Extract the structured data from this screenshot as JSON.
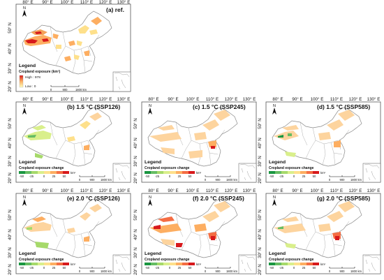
{
  "top": {
    "title": "(a) ref.",
    "lon_ticks": [
      "80° E",
      "90° E",
      "100° E",
      "110° E",
      "120° E",
      "130° E"
    ],
    "lat_ticks": [
      "50° N",
      "40° N",
      "30° N",
      "20° N"
    ],
    "legend_title": "Legend",
    "legend_subtitle": "Cropland exposure (km²)",
    "legend_high": "High : 978",
    "legend_low": "Low : 0",
    "scale_labels": [
      "0",
      "900",
      "1800 km"
    ],
    "north": "N"
  },
  "panels": [
    {
      "title": "(b) 1.5 °C (SSP126)"
    },
    {
      "title": "(c) 1.5 °C (SSP245)"
    },
    {
      "title": "(d) 1.5 °C (SSP585)"
    },
    {
      "title": "(e) 2.0 °C (SSP126)"
    },
    {
      "title": "(f) 2.0 °C (SSP245)"
    },
    {
      "title": "(g) 2.0 °C (SSP585)"
    }
  ],
  "common": {
    "lon_ticks": [
      "80° E",
      "90° E",
      "100° E",
      "110° E",
      "120° E",
      "130° E"
    ],
    "lat_ticks": [
      "50° N",
      "40° N",
      "30° N",
      "20° N"
    ],
    "legend_title": "Legend",
    "legend_subtitle": "Cropland exposure change",
    "legend_ticks": [
      "-50",
      "-25",
      "0",
      "25",
      "50"
    ],
    "legend_unit": "km²",
    "scale_labels": [
      "0",
      "900",
      "1800 km"
    ],
    "north": "N"
  },
  "colors": {
    "outline": "#8a8a8a",
    "ref_high": "#d7191c",
    "ref_mid": "#fdae61",
    "ref_low": "#ffffbf",
    "neg_strong": "#1a9641",
    "neg_weak": "#a6d96a",
    "pos_weak": "#f4c27f",
    "pos_strong": "#d7191c"
  }
}
